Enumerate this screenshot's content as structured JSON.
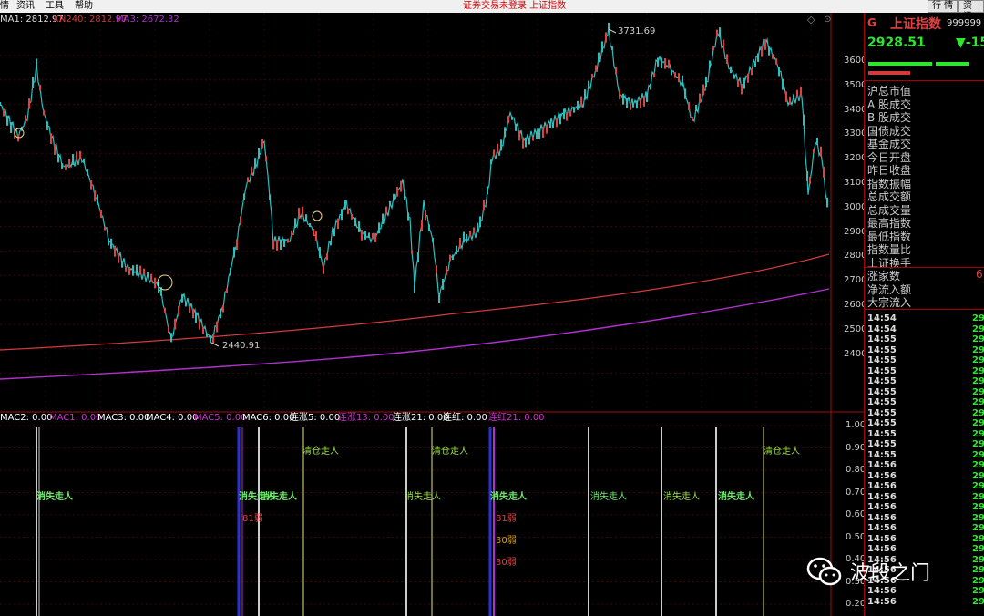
{
  "menu": {
    "items": [
      "情",
      "资讯",
      "工具",
      "帮助"
    ],
    "center_text": "证券交易未登录  上证指数",
    "buttons": [
      "行 情",
      "资 讯"
    ]
  },
  "legend": {
    "ma1": "MA1: 2812.97",
    "ma2": "XN240: 2812.97",
    "ma3": "MA3: 2672.32",
    "colors": {
      "ma1": "#dddddd",
      "ma2": "#d23b3b",
      "ma3": "#b030d0"
    }
  },
  "price_axis": {
    "ticks": [
      "3600",
      "3500",
      "3400",
      "3300",
      "3200",
      "3100",
      "3000",
      "2900",
      "2800",
      "2700",
      "2600",
      "2500",
      "2400"
    ]
  },
  "price_marks": {
    "high": "3731.69",
    "low": "2440.91"
  },
  "indicator_legend": [
    {
      "text": "MAC2: 0.00",
      "color": "#ffffff"
    },
    {
      "text": "MAC1: 0.00",
      "color": "#cc33cc"
    },
    {
      "text": "MAC3: 0.00",
      "color": "#ffffff"
    },
    {
      "text": "MAC4: 0.00",
      "color": "#ffffff"
    },
    {
      "text": "MAC5: 0.00",
      "color": "#cc33cc"
    },
    {
      "text": "MAC6: 0.00",
      "color": "#ffffff"
    },
    {
      "text": "连涨5: 0.00",
      "color": "#ffffff"
    },
    {
      "text": "连涨13: 0.00",
      "color": "#cc33cc"
    },
    {
      "text": "连涨21: 0.00",
      "color": "#ffffff"
    },
    {
      "text": "连红: 0.00",
      "color": "#ffffff"
    },
    {
      "text": "连红21: 0.00",
      "color": "#cc33cc"
    }
  ],
  "indicator_axis": {
    "ticks": [
      "1.00",
      "0.90",
      "0.80",
      "0.70",
      "0.60",
      "0.50",
      "0.40",
      "0.30",
      "0.20"
    ]
  },
  "annotations": {
    "clear": "清仓走人",
    "vanish": "消失走人",
    "g1": "81弱",
    "g2": "81弱",
    "g3": "30弱",
    "g4": "30弱"
  },
  "panel": {
    "prefix": "G",
    "index_name": "上证指数",
    "code": "999999",
    "price": "2928.51",
    "change": "▼-15",
    "fields": [
      "沪总市值",
      "A 股成交",
      "B 股成交",
      "国债成交",
      "基金成交",
      "今日开盘",
      "昨日收盘",
      "指数振幅",
      "总成交额",
      "总成交量",
      "最高指数",
      "最低指数",
      "指数量比",
      "上证换手",
      "涨家数",
      "净流入额",
      "大宗流入"
    ],
    "zhang_value": "6",
    "ticks": [
      {
        "t": "14:54",
        "v": "29"
      },
      {
        "t": "14:54",
        "v": "29"
      },
      {
        "t": "14:55",
        "v": "29"
      },
      {
        "t": "14:55",
        "v": "29"
      },
      {
        "t": "14:55",
        "v": "29"
      },
      {
        "t": "14:55",
        "v": "29"
      },
      {
        "t": "14:55",
        "v": "29"
      },
      {
        "t": "14:55",
        "v": "29"
      },
      {
        "t": "14:55",
        "v": "29"
      },
      {
        "t": "14:55",
        "v": "29"
      },
      {
        "t": "14:55",
        "v": "29"
      },
      {
        "t": "14:55",
        "v": "29"
      },
      {
        "t": "14:55",
        "v": "29"
      },
      {
        "t": "14:55",
        "v": "29"
      },
      {
        "t": "14:56",
        "v": "29"
      },
      {
        "t": "14:56",
        "v": "29"
      },
      {
        "t": "14:56",
        "v": "29"
      },
      {
        "t": "14:56",
        "v": "29"
      },
      {
        "t": "14:56",
        "v": "29"
      },
      {
        "t": "14:56",
        "v": "29"
      },
      {
        "t": "14:56",
        "v": "29"
      },
      {
        "t": "14:56",
        "v": "29"
      },
      {
        "t": "14:56",
        "v": "29"
      },
      {
        "t": "14:56",
        "v": "29"
      },
      {
        "t": "14:56",
        "v": "29"
      },
      {
        "t": "14:56",
        "v": "29"
      },
      {
        "t": "14:56",
        "v": "29"
      },
      {
        "t": "14:56",
        "v": "29"
      }
    ]
  },
  "watermark": {
    "text": "波段之门",
    "icon": "wechat-icon"
  }
}
